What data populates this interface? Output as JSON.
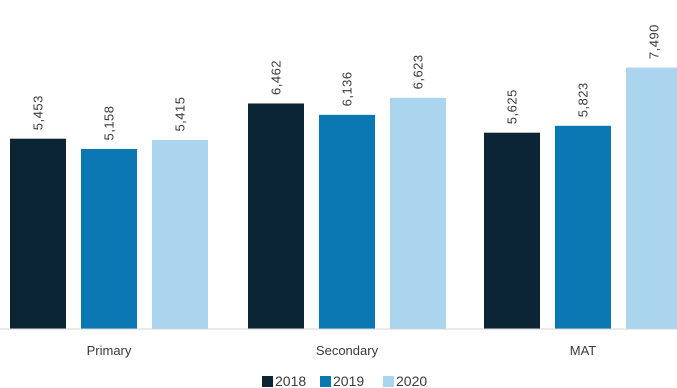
{
  "chart_data": {
    "type": "bar",
    "categories": [
      "Primary",
      "Secondary",
      "MAT"
    ],
    "series": [
      {
        "name": "2018",
        "color": "#0b2535",
        "values": [
          5453,
          6462,
          5625
        ],
        "labels": [
          "5,453",
          "6,462",
          "5,625"
        ]
      },
      {
        "name": "2019",
        "color": "#0b78b4",
        "values": [
          5158,
          6136,
          5823
        ],
        "labels": [
          "5,158",
          "6,136",
          "5,823"
        ]
      },
      {
        "name": "2020",
        "color": "#abd4ef",
        "values": [
          5415,
          6623,
          7490
        ],
        "labels": [
          "5,415",
          "6,623",
          "7,490"
        ]
      }
    ],
    "ylim": [
      0,
      8000
    ],
    "grid": false,
    "legend_position": "bottom-center"
  }
}
